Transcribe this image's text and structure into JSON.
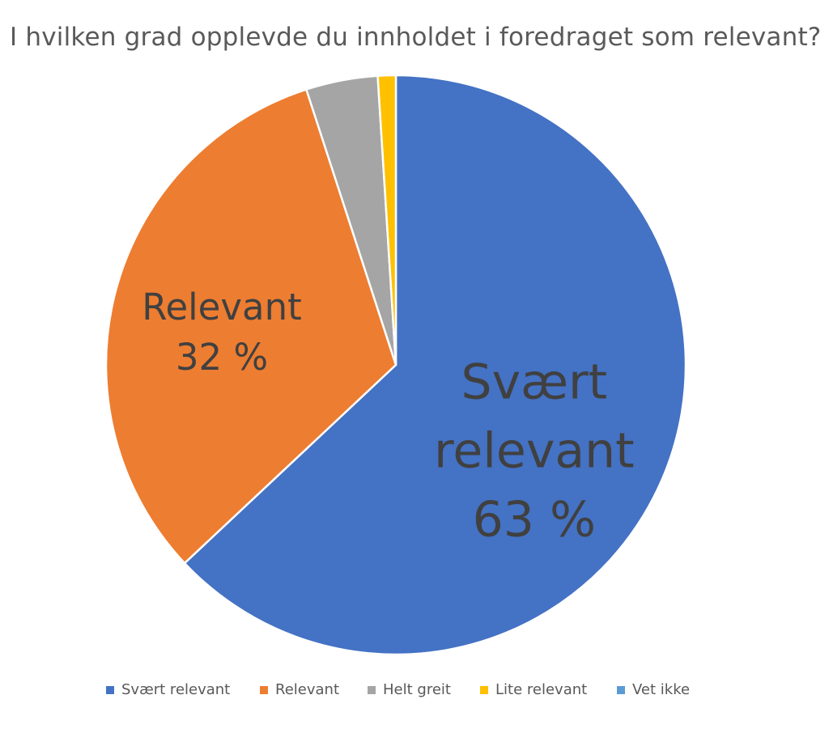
{
  "chart_data": {
    "type": "pie",
    "title": "I hvilken grad opplevde du innholdet i foredraget som relevant?",
    "categories": [
      "Svært relevant",
      "Relevant",
      "Helt greit",
      "Lite relevant",
      "Vet ikke"
    ],
    "values": [
      63,
      32,
      4,
      1,
      0
    ],
    "colors": [
      "#4472C4",
      "#ED7D31",
      "#A5A5A5",
      "#FFC000",
      "#5B9BD5"
    ],
    "data_labels": [
      {
        "lines": [
          "Svært",
          "relevant",
          "63 %"
        ]
      },
      {
        "lines": [
          "Relevant",
          "32 %"
        ]
      }
    ],
    "legend_position": "bottom"
  }
}
